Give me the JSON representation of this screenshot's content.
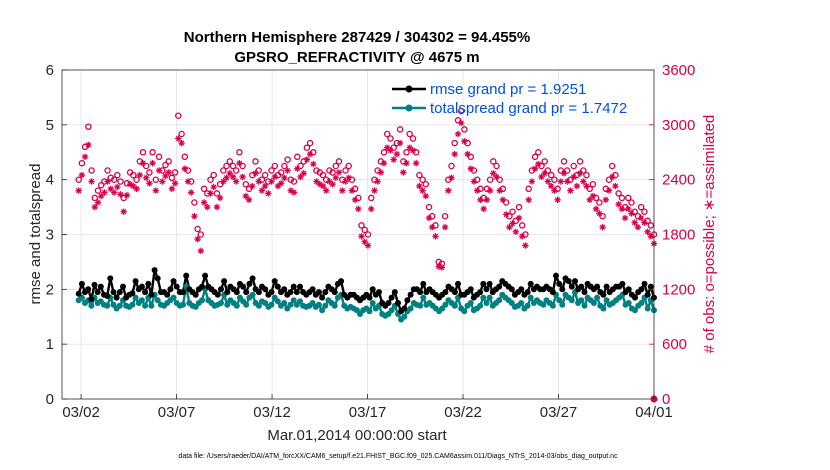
{
  "chart_data": {
    "type": "line",
    "title": "Northern Hemisphere 287429 / 304302 = 94.455%",
    "subtitle": "GPSRO_REFRACTIVITY @ 4675 m",
    "xlabel": "Mar.01,2014 00:00:00 start",
    "ylabel_left": "rmse and totalspread",
    "ylabel_right": "# of obs: o=possible; ∗=assimilated",
    "x_tick_labels": [
      "03/02",
      "03/07",
      "03/12",
      "03/17",
      "03/22",
      "03/27",
      "04/01"
    ],
    "x_tick_days": [
      2,
      7,
      12,
      17,
      22,
      27,
      32
    ],
    "xlim": [
      1,
      32
    ],
    "ylim_left": [
      0,
      6
    ],
    "ylim_right": [
      0,
      3600
    ],
    "yticks_left": [
      "0",
      "1",
      "2",
      "3",
      "4",
      "5",
      "6"
    ],
    "yticks_right": [
      "0",
      "600",
      "1200",
      "1800",
      "2400",
      "3000",
      "3600"
    ],
    "colors": {
      "rmse": "#000000",
      "spread": "#008080",
      "obs": "#d6004c",
      "grid": "#e3e3e3",
      "legend_text": "#0050e0"
    },
    "legend": [
      {
        "name": "rmse grand pr = 1.9251"
      },
      {
        "name": "totalspread grand pr = 1.7472"
      }
    ],
    "series": [
      {
        "name": "rmse",
        "axis": "left",
        "values": [
          1.92,
          2.1,
          1.95,
          2.0,
          1.82,
          2.08,
          1.95,
          2.05,
          1.9,
          1.88,
          2.2,
          1.95,
          1.85,
          1.95,
          2.05,
          1.85,
          1.9,
          1.93,
          2.15,
          2.0,
          2.05,
          1.95,
          2.1,
          1.9,
          2.35,
          2.2,
          1.95,
          1.95,
          1.9,
          2.0,
          2.15,
          2.05,
          1.95,
          1.95,
          2.25,
          2.0,
          1.95,
          1.9,
          2.0,
          2.05,
          2.25,
          2.05,
          2.0,
          1.95,
          1.9,
          2.0,
          2.15,
          1.95,
          2.05,
          2.0,
          1.95,
          2.1,
          2.05,
          1.95,
          2.1,
          2.2,
          2.0,
          1.95,
          2.05,
          2.0,
          1.9,
          1.95,
          2.15,
          2.05,
          1.95,
          2.0,
          1.9,
          1.95,
          2.05,
          1.95,
          2.05,
          1.95,
          1.9,
          1.95,
          2.0,
          1.9,
          1.95,
          1.85,
          1.95,
          2.05,
          2.0,
          1.95,
          2.1,
          2.15,
          1.9,
          1.85,
          1.9,
          1.9,
          1.85,
          1.8,
          1.85,
          1.9,
          1.85,
          2.0,
          1.9,
          1.95,
          1.75,
          1.7,
          1.75,
          1.85,
          1.95,
          1.75,
          1.6,
          1.65,
          1.8,
          1.9,
          2.0,
          2.0,
          1.95,
          2.1,
          1.95,
          2.0,
          1.95,
          1.9,
          1.85,
          1.9,
          1.95,
          2.05,
          2.0,
          1.95,
          2.1,
          1.9,
          1.9,
          1.95,
          2.0,
          1.85,
          1.9,
          1.95,
          2.1,
          2.0,
          2.1,
          1.95,
          2.0,
          2.05,
          2.15,
          2.1,
          2.05,
          2.0,
          1.9,
          1.95,
          2.0,
          1.9,
          1.95,
          2.1,
          2.0,
          2.05,
          2.0,
          2.0,
          2.05,
          2.0,
          1.95,
          2.25,
          2.1,
          2.0,
          2.2,
          2.15,
          2.05,
          2.15,
          2.0,
          2.05,
          1.95,
          2.1,
          2.05,
          2.0,
          2.05,
          1.95,
          1.9,
          2.05,
          1.95,
          2.0,
          2.05,
          2.05,
          2.1,
          1.95,
          2.0,
          1.9,
          1.85,
          1.95,
          2.0,
          2.1,
          1.9,
          2.05,
          1.85
        ]
      },
      {
        "name": "totalspread",
        "axis": "left",
        "values": [
          1.8,
          1.85,
          1.75,
          1.8,
          1.7,
          1.85,
          1.75,
          1.78,
          1.72,
          1.7,
          1.85,
          1.72,
          1.65,
          1.7,
          1.8,
          1.7,
          1.68,
          1.72,
          1.85,
          1.75,
          1.8,
          1.7,
          1.85,
          1.7,
          1.9,
          1.8,
          1.72,
          1.7,
          1.75,
          1.8,
          1.85,
          1.75,
          1.7,
          1.72,
          2.05,
          1.75,
          1.7,
          1.68,
          1.75,
          1.8,
          2.0,
          1.8,
          1.75,
          1.7,
          1.72,
          1.75,
          1.9,
          1.72,
          1.8,
          1.75,
          1.7,
          1.85,
          1.78,
          1.72,
          1.85,
          1.9,
          1.75,
          1.7,
          1.78,
          1.75,
          1.68,
          1.72,
          1.85,
          1.78,
          1.7,
          1.75,
          1.65,
          1.72,
          1.8,
          1.72,
          1.78,
          1.7,
          1.68,
          1.7,
          1.75,
          1.68,
          1.72,
          1.62,
          1.7,
          1.8,
          1.75,
          1.7,
          1.85,
          1.9,
          1.7,
          1.65,
          1.68,
          1.65,
          1.62,
          1.55,
          1.62,
          1.65,
          1.6,
          1.75,
          1.65,
          1.7,
          1.55,
          1.52,
          1.55,
          1.62,
          1.7,
          1.55,
          1.45,
          1.5,
          1.6,
          1.65,
          1.75,
          1.72,
          1.7,
          1.85,
          1.72,
          1.75,
          1.7,
          1.65,
          1.6,
          1.65,
          1.72,
          1.8,
          1.75,
          1.7,
          1.85,
          1.65,
          1.6,
          1.7,
          1.75,
          1.62,
          1.65,
          1.7,
          1.85,
          1.75,
          1.85,
          1.7,
          1.75,
          1.8,
          1.9,
          1.85,
          1.8,
          1.75,
          1.68,
          1.7,
          1.75,
          1.65,
          1.7,
          1.85,
          1.75,
          1.8,
          1.75,
          1.72,
          1.8,
          1.75,
          1.7,
          1.9,
          1.8,
          1.72,
          1.9,
          1.85,
          1.8,
          1.95,
          1.75,
          1.8,
          1.7,
          1.85,
          1.8,
          1.75,
          1.85,
          1.7,
          1.65,
          1.8,
          1.72,
          1.75,
          1.8,
          1.85,
          1.9,
          1.72,
          1.75,
          1.65,
          1.62,
          1.7,
          1.75,
          1.85,
          1.65,
          1.8,
          1.62
        ]
      },
      {
        "name": "possible",
        "axis": "right",
        "values": [
          2400,
          2580,
          2760,
          2980,
          2500,
          2200,
          2280,
          2340,
          2380,
          2500,
          2420,
          2400,
          2450,
          2380,
          2200,
          2360,
          2480,
          2450,
          2400,
          2600,
          2700,
          2550,
          2480,
          2700,
          2400,
          2650,
          2500,
          2560,
          2600,
          2420,
          2480,
          3100,
          2900,
          2650,
          2500,
          2380,
          2150,
          1860,
          1800,
          2300,
          2250,
          2400,
          2450,
          2250,
          2350,
          2500,
          2550,
          2600,
          2550,
          2500,
          2700,
          2550,
          2350,
          2300,
          2450,
          2600,
          2500,
          2400,
          2450,
          2380,
          2500,
          2550,
          2450,
          2480,
          2550,
          2620,
          2400,
          2380,
          2650,
          2550,
          2600,
          2750,
          2800,
          2700,
          2500,
          2480,
          2450,
          2400,
          2500,
          2480,
          2550,
          2600,
          2400,
          2500,
          2550,
          2400,
          2300,
          2200,
          1900,
          1850,
          1800,
          2200,
          2400,
          2500,
          2600,
          2700,
          2900,
          2850,
          2750,
          2800,
          2950,
          2600,
          2700,
          2900,
          2850,
          2700,
          2450,
          2400,
          2350,
          2100,
          2000,
          1900,
          1500,
          1480,
          2000,
          2400,
          2550,
          2800,
          3050,
          3150,
          2950,
          2800,
          2650,
          2500,
          2400,
          2300,
          2200,
          2300,
          2400,
          2600,
          2550,
          2400,
          2300,
          2150,
          2000,
          2050,
          1950,
          2100,
          1900,
          1800,
          2300,
          2500,
          2650,
          2700,
          2550,
          2600,
          2500,
          2450,
          2400,
          2300,
          2500,
          2600,
          2500,
          2400,
          2550,
          2450,
          2600,
          2500,
          2450,
          2300,
          2350,
          2200,
          2150,
          2000,
          2300,
          2400,
          2550,
          2450,
          2250,
          2200,
          2100,
          2200,
          2150,
          2050,
          2000,
          2100,
          2050,
          1950,
          1900,
          1800
        ]
      },
      {
        "name": "assimilated",
        "axis": "right",
        "values": [
          2280,
          2450,
          2650,
          2780,
          2380,
          2100,
          2150,
          2220,
          2260,
          2380,
          2300,
          2260,
          2320,
          2240,
          2050,
          2230,
          2350,
          2330,
          2300,
          2450,
          2580,
          2420,
          2360,
          2580,
          2280,
          2500,
          2380,
          2440,
          2480,
          2300,
          2360,
          2850,
          2800,
          2520,
          2380,
          2260,
          2000,
          1750,
          1620,
          2150,
          2100,
          2250,
          2320,
          2100,
          2200,
          2380,
          2420,
          2470,
          2430,
          2380,
          2580,
          2430,
          2220,
          2180,
          2330,
          2470,
          2380,
          2280,
          2330,
          2250,
          2380,
          2430,
          2330,
          2360,
          2420,
          2500,
          2280,
          2260,
          2520,
          2430,
          2470,
          2620,
          2680,
          2570,
          2380,
          2350,
          2330,
          2280,
          2380,
          2350,
          2420,
          2480,
          2280,
          2380,
          2420,
          2280,
          2180,
          2080,
          1780,
          1720,
          1680,
          2080,
          2280,
          2380,
          2480,
          2580,
          2750,
          2720,
          2620,
          2680,
          2800,
          2480,
          2580,
          2750,
          2720,
          2580,
          2330,
          2280,
          2220,
          1980,
          1880,
          1780,
          1450,
          1440,
          1880,
          2280,
          2420,
          2680,
          2900,
          3020,
          2820,
          2680,
          2520,
          2380,
          2280,
          2180,
          2080,
          2180,
          2280,
          2470,
          2430,
          2280,
          2180,
          2020,
          1880,
          1920,
          1830,
          1980,
          1780,
          1680,
          2180,
          2380,
          2520,
          2570,
          2430,
          2470,
          2380,
          2330,
          2280,
          2180,
          2380,
          2470,
          2380,
          2280,
          2430,
          2330,
          2470,
          2380,
          2330,
          2180,
          2220,
          2080,
          2030,
          1880,
          2180,
          2280,
          2430,
          2330,
          2130,
          2080,
          1980,
          2080,
          2030,
          1930,
          1880,
          1980,
          1930,
          1830,
          1780,
          1700
        ]
      }
    ],
    "end_marker_value": 0
  },
  "footer": {
    "data_file": "data file: /Users/raeder/DAI/ATM_forcXX/CAM6_setup/f.e21.FHIST_BGC.f09_025.CAM6assim.011/Diags_NTrS_2014-03/obs_diag_output.nc"
  }
}
